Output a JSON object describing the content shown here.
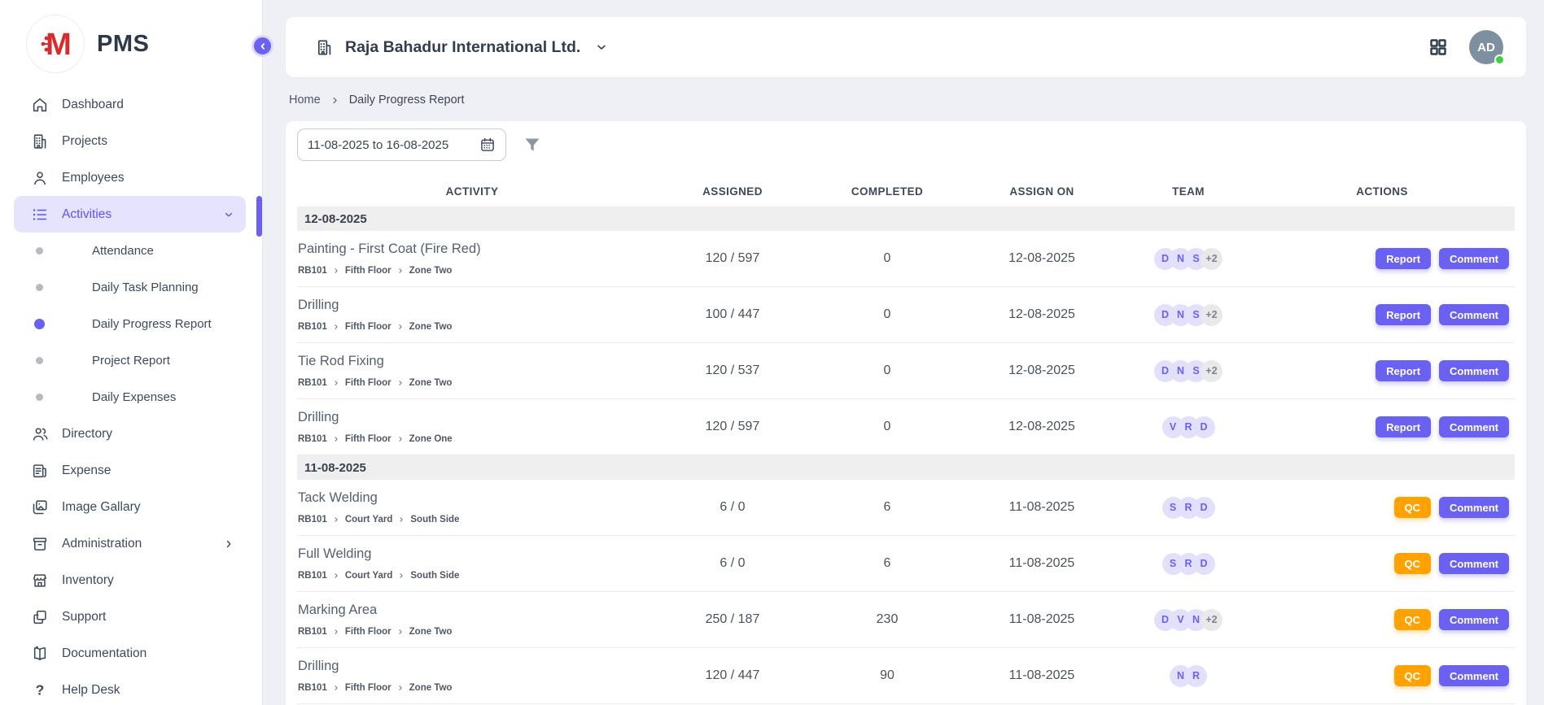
{
  "app": {
    "logo_text": "PMS"
  },
  "colors": {
    "accent_indigo": "#6a61f1",
    "accent_orange": "#ffa202",
    "active_nav_bg": "#e6e3fe",
    "avatar_bg": "#7e90a0",
    "online_green": "#3ed33e",
    "logo_red": "#d92b2b"
  },
  "sidebar": {
    "items": [
      {
        "label": "Dashboard",
        "icon": "home"
      },
      {
        "label": "Projects",
        "icon": "building"
      },
      {
        "label": "Employees",
        "icon": "person"
      },
      {
        "label": "Activities",
        "icon": "list",
        "active": true,
        "chevron": "down"
      },
      {
        "label": "Attendance",
        "sub": true
      },
      {
        "label": "Daily Task Planning",
        "sub": true
      },
      {
        "label": "Daily Progress Report",
        "sub": true,
        "active": true
      },
      {
        "label": "Project Report",
        "sub": true
      },
      {
        "label": "Daily Expenses",
        "sub": true
      },
      {
        "label": "Directory",
        "icon": "people"
      },
      {
        "label": "Expense",
        "icon": "receipt"
      },
      {
        "label": "Image Gallary",
        "icon": "image"
      },
      {
        "label": "Administration",
        "icon": "archive",
        "chevron": "right"
      },
      {
        "label": "Inventory",
        "icon": "store"
      },
      {
        "label": "Support",
        "icon": "copy"
      },
      {
        "label": "Documentation",
        "icon": "book"
      },
      {
        "label": "Help Desk",
        "icon": "help"
      }
    ]
  },
  "header": {
    "company": "Raja Bahadur International Ltd.",
    "avatar_initials": "AD",
    "online": true
  },
  "breadcrumb": {
    "items": [
      "Home",
      "Daily Progress Report"
    ]
  },
  "filters": {
    "date_range": "11-08-2025 to 16-08-2025"
  },
  "table": {
    "columns": [
      "ACTIVITY",
      "ASSIGNED",
      "COMPLETED",
      "ASSIGN ON",
      "TEAM",
      "ACTIONS"
    ],
    "groups": [
      {
        "date": "12-08-2025",
        "rows": [
          {
            "title": "Painting - First Coat (Fire Red)",
            "path": [
              "RB101",
              "Fifth Floor",
              "Zone Two"
            ],
            "assigned": "120 / 597",
            "completed": "0",
            "assign_on": "12-08-2025",
            "team": {
              "members": [
                "D",
                "N",
                "S"
              ],
              "extra": "+2"
            },
            "actions": [
              {
                "label": "Report",
                "style": "indigo"
              },
              {
                "label": "Comment",
                "style": "indigo"
              }
            ]
          },
          {
            "title": "Drilling",
            "path": [
              "RB101",
              "Fifth Floor",
              "Zone Two"
            ],
            "assigned": "100 / 447",
            "completed": "0",
            "assign_on": "12-08-2025",
            "team": {
              "members": [
                "D",
                "N",
                "S"
              ],
              "extra": "+2"
            },
            "actions": [
              {
                "label": "Report",
                "style": "indigo"
              },
              {
                "label": "Comment",
                "style": "indigo"
              }
            ]
          },
          {
            "title": "Tie Rod Fixing",
            "path": [
              "RB101",
              "Fifth Floor",
              "Zone Two"
            ],
            "assigned": "120 / 537",
            "completed": "0",
            "assign_on": "12-08-2025",
            "team": {
              "members": [
                "D",
                "N",
                "S"
              ],
              "extra": "+2"
            },
            "actions": [
              {
                "label": "Report",
                "style": "indigo"
              },
              {
                "label": "Comment",
                "style": "indigo"
              }
            ]
          },
          {
            "title": "Drilling",
            "path": [
              "RB101",
              "Fifth Floor",
              "Zone One"
            ],
            "assigned": "120 / 597",
            "completed": "0",
            "assign_on": "12-08-2025",
            "team": {
              "members": [
                "V",
                "R",
                "D"
              ],
              "extra": null
            },
            "actions": [
              {
                "label": "Report",
                "style": "indigo"
              },
              {
                "label": "Comment",
                "style": "indigo"
              }
            ]
          }
        ]
      },
      {
        "date": "11-08-2025",
        "rows": [
          {
            "title": "Tack Welding",
            "path": [
              "RB101",
              "Court Yard",
              "South Side"
            ],
            "assigned": "6 / 0",
            "completed": "6",
            "assign_on": "11-08-2025",
            "team": {
              "members": [
                "S",
                "R",
                "D"
              ],
              "extra": null
            },
            "actions": [
              {
                "label": "QC",
                "style": "orange"
              },
              {
                "label": "Comment",
                "style": "indigo"
              }
            ]
          },
          {
            "title": "Full Welding",
            "path": [
              "RB101",
              "Court Yard",
              "South Side"
            ],
            "assigned": "6 / 0",
            "completed": "6",
            "assign_on": "11-08-2025",
            "team": {
              "members": [
                "S",
                "R",
                "D"
              ],
              "extra": null
            },
            "actions": [
              {
                "label": "QC",
                "style": "orange"
              },
              {
                "label": "Comment",
                "style": "indigo"
              }
            ]
          },
          {
            "title": "Marking Area",
            "path": [
              "RB101",
              "Fifth Floor",
              "Zone Two"
            ],
            "assigned": "250 / 187",
            "completed": "230",
            "assign_on": "11-08-2025",
            "team": {
              "members": [
                "D",
                "V",
                "N"
              ],
              "extra": "+2"
            },
            "actions": [
              {
                "label": "QC",
                "style": "orange"
              },
              {
                "label": "Comment",
                "style": "indigo"
              }
            ]
          },
          {
            "title": "Drilling",
            "path": [
              "RB101",
              "Fifth Floor",
              "Zone Two"
            ],
            "assigned": "120 / 447",
            "completed": "90",
            "assign_on": "11-08-2025",
            "team": {
              "members": [
                "N",
                "R"
              ],
              "extra": null
            },
            "actions": [
              {
                "label": "QC",
                "style": "orange"
              },
              {
                "label": "Comment",
                "style": "indigo"
              }
            ]
          }
        ]
      }
    ]
  }
}
